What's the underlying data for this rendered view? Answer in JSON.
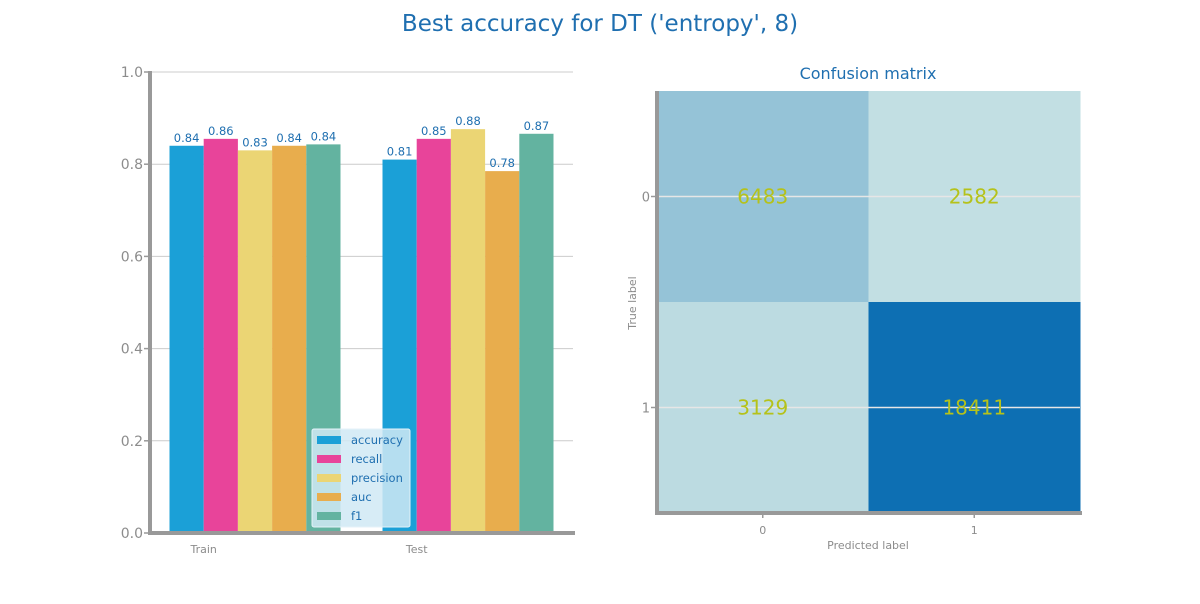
{
  "figure": {
    "title": "Best accuracy for DT ('entropy', 8)"
  },
  "colors": {
    "title": "#1f6fb0",
    "tick": "#8c8c8c",
    "axis": "#999999",
    "grid": "#cccccc",
    "value_label": "#1f6fb0",
    "legend_bg": "#d0e9f5",
    "legend_text": "#1f6fb0",
    "cm_text": "#b5c21a",
    "series": [
      "#1ba0d7",
      "#e8449a",
      "#ebd574",
      "#e8ad4d",
      "#63b3a0"
    ]
  },
  "chart_data": [
    {
      "type": "bar",
      "title": "",
      "xlabel": "",
      "ylabel": "",
      "categories": [
        "Train",
        "Test"
      ],
      "ylim": [
        0.0,
        1.0
      ],
      "yticks": [
        0.0,
        0.2,
        0.4,
        0.6,
        0.8,
        1.0
      ],
      "yticklabels": [
        "0.0",
        "0.2",
        "0.4",
        "0.6",
        "0.8",
        "1.0"
      ],
      "grid": "horizontal",
      "legend_placement": "bottom-center",
      "series": [
        {
          "name": "accuracy",
          "values": [
            0.84,
            0.81
          ],
          "labels": [
            "0.84",
            "0.81"
          ]
        },
        {
          "name": "recall",
          "values": [
            0.855,
            0.855
          ],
          "labels": [
            "0.86",
            "0.85"
          ]
        },
        {
          "name": "precision",
          "values": [
            0.83,
            0.876
          ],
          "labels": [
            "0.83",
            "0.88"
          ]
        },
        {
          "name": "auc",
          "values": [
            0.84,
            0.785
          ],
          "labels": [
            "0.84",
            "0.78"
          ]
        },
        {
          "name": "f1",
          "values": [
            0.843,
            0.866
          ],
          "labels": [
            "0.84",
            "0.87"
          ]
        }
      ]
    },
    {
      "type": "heatmap",
      "title": "Confusion matrix",
      "xlabel": "Predicted label",
      "ylabel": "True label",
      "x_categories": [
        "0",
        "1"
      ],
      "y_categories": [
        "0",
        "1"
      ],
      "values": [
        [
          6483,
          2582
        ],
        [
          3129,
          18411
        ]
      ],
      "cell_labels": [
        [
          "6483",
          "2582"
        ],
        [
          "3129",
          "18411"
        ]
      ],
      "colormap": [
        "#c2dfe3",
        "#0d6fb3"
      ]
    }
  ]
}
